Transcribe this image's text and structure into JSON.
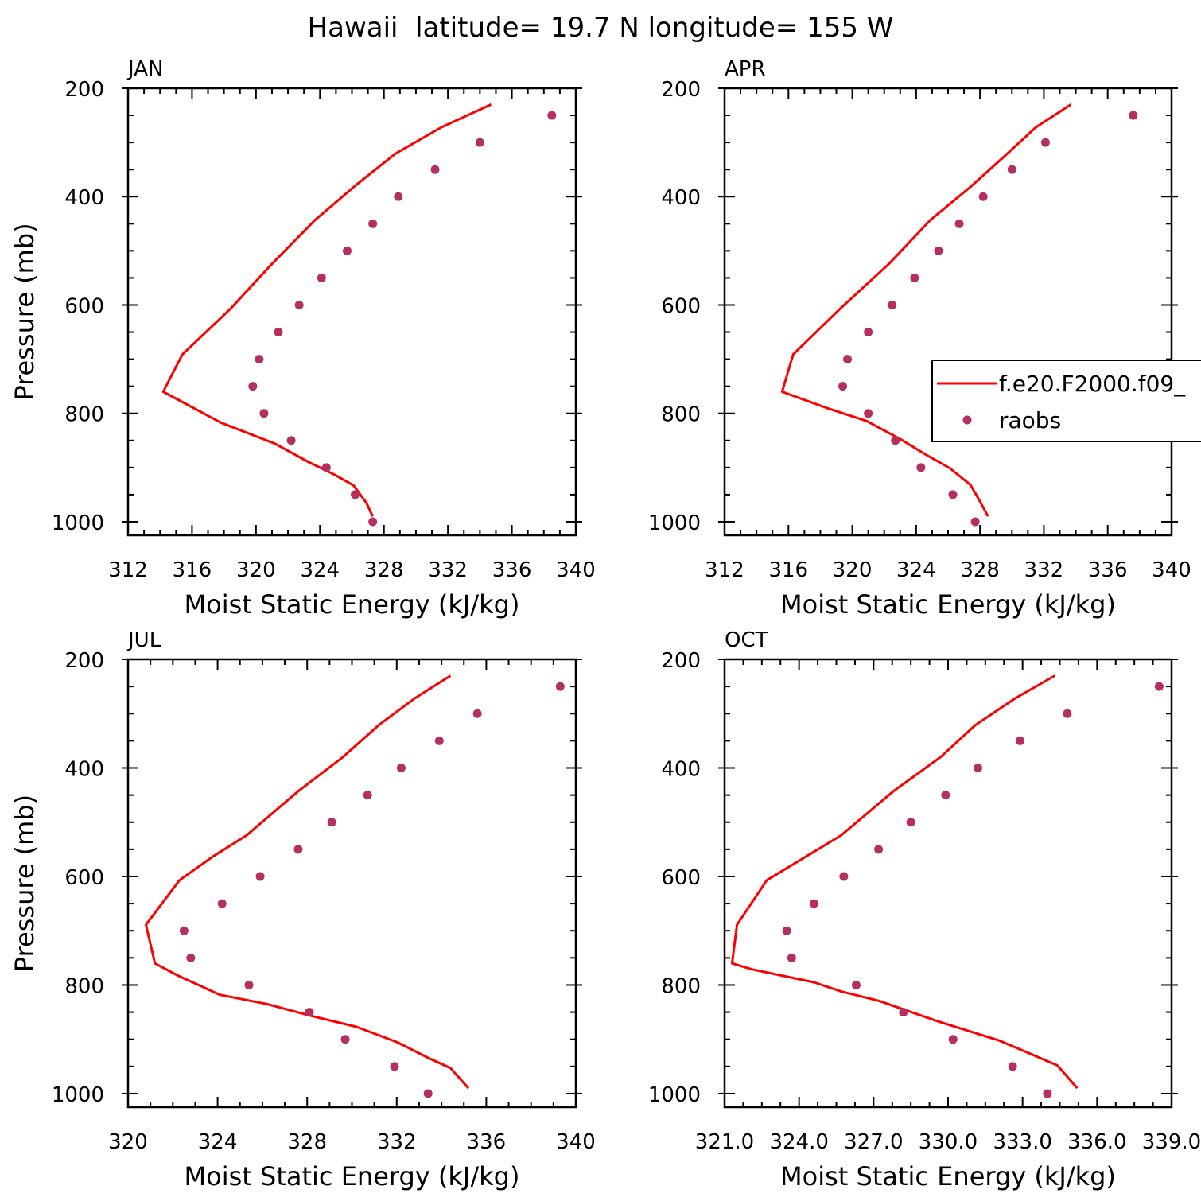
{
  "figure_title": "Hawaii  latitude= 19.7 N longitude= 155 W",
  "legend": {
    "line_label": "f.e20.F2000.f09_",
    "marker_label": "raobs"
  },
  "colors": {
    "model_line": "#ff0000",
    "obs_marker": "#b5305f",
    "axes": "#000000",
    "background": "#ffffff"
  },
  "chart_data": [
    {
      "type": "line",
      "panel_label": "JAN",
      "xlabel": "Moist Static Energy (kJ/kg)",
      "ylabel": "Pressure (mb)",
      "xlim": [
        312,
        340
      ],
      "ylim": [
        200,
        1025
      ],
      "y_inverted": true,
      "xticks": [
        312,
        316,
        320,
        324,
        328,
        332,
        336,
        340
      ],
      "xtick_labels": [
        "312",
        "316",
        "320",
        "324",
        "328",
        "332",
        "336",
        "340"
      ],
      "yticks": [
        200,
        400,
        600,
        800,
        1000
      ],
      "ytick_labels": [
        "200",
        "400",
        "600",
        "800",
        "1000"
      ],
      "show_ylabel": true,
      "show_legend": false,
      "series": [
        {
          "name": "f.e20.F2000.f09_",
          "kind": "line",
          "x": [
            334.7,
            331.6,
            328.7,
            326.2,
            323.7,
            321.0,
            318.4,
            315.4,
            314.2,
            317.8,
            321.2,
            323.3,
            324.9,
            326.1,
            326.9,
            327.3
          ],
          "y": [
            230,
            272,
            321,
            380,
            443,
            524,
            607,
            691,
            760,
            817,
            856,
            890,
            913,
            933,
            965,
            990
          ]
        },
        {
          "name": "raobs",
          "kind": "scatter",
          "x": [
            338.5,
            334.0,
            331.2,
            328.9,
            327.3,
            325.7,
            324.1,
            322.7,
            321.4,
            320.2,
            319.8,
            320.5,
            322.2,
            324.4,
            326.2,
            327.3
          ],
          "y": [
            250,
            300,
            350,
            400,
            450,
            500,
            550,
            600,
            650,
            700,
            750,
            800,
            850,
            900,
            950,
            1000
          ]
        }
      ]
    },
    {
      "type": "line",
      "panel_label": "APR",
      "xlabel": "Moist Static Energy (kJ/kg)",
      "ylabel": "",
      "xlim": [
        312,
        340
      ],
      "ylim": [
        200,
        1025
      ],
      "y_inverted": true,
      "xticks": [
        312,
        316,
        320,
        324,
        328,
        332,
        336,
        340
      ],
      "xtick_labels": [
        "312",
        "316",
        "320",
        "324",
        "328",
        "332",
        "336",
        "340"
      ],
      "yticks": [
        200,
        400,
        600,
        800,
        1000
      ],
      "ytick_labels": [
        "200",
        "400",
        "600",
        "800",
        "1000"
      ],
      "show_ylabel": false,
      "show_legend": true,
      "series": [
        {
          "name": "f.e20.F2000.f09_",
          "kind": "line",
          "x": [
            333.7,
            331.5,
            329.7,
            327.4,
            324.9,
            322.3,
            319.2,
            316.3,
            315.6,
            318.4,
            320.9,
            323.1,
            324.6,
            326.1,
            327.4,
            327.9,
            328.5
          ],
          "y": [
            230,
            272,
            321,
            382,
            443,
            524,
            608,
            691,
            760,
            790,
            814,
            849,
            876,
            901,
            932,
            957,
            990
          ]
        },
        {
          "name": "raobs",
          "kind": "scatter",
          "x": [
            337.6,
            332.1,
            330.0,
            328.2,
            326.7,
            325.4,
            323.9,
            322.5,
            321.0,
            319.7,
            319.4,
            321.0,
            322.7,
            324.3,
            326.3,
            327.7
          ],
          "y": [
            250,
            300,
            350,
            400,
            450,
            500,
            550,
            600,
            650,
            700,
            750,
            800,
            850,
            900,
            950,
            1000
          ]
        }
      ]
    },
    {
      "type": "line",
      "panel_label": "JUL",
      "xlabel": "Moist Static Energy (kJ/kg)",
      "ylabel": "Pressure (mb)",
      "xlim": [
        320,
        340
      ],
      "ylim": [
        200,
        1025
      ],
      "y_inverted": true,
      "xticks": [
        320,
        324,
        328,
        332,
        336,
        340
      ],
      "xtick_labels": [
        "320",
        "324",
        "328",
        "332",
        "336",
        "340"
      ],
      "yticks": [
        200,
        400,
        600,
        800,
        1000
      ],
      "ytick_labels": [
        "200",
        "400",
        "600",
        "800",
        "1000"
      ],
      "show_ylabel": true,
      "show_legend": false,
      "series": [
        {
          "name": "f.e20.F2000.f09_",
          "kind": "line",
          "x": [
            334.4,
            332.8,
            331.2,
            329.6,
            327.6,
            325.3,
            323.8,
            322.3,
            320.8,
            321.2,
            322.2,
            324.1,
            326.2,
            328.1,
            330.2,
            332.0,
            333.5,
            334.4,
            335.2
          ],
          "y": [
            230,
            272,
            321,
            380,
            443,
            524,
            563,
            607,
            689,
            760,
            782,
            818,
            835,
            856,
            877,
            905,
            936,
            953,
            990
          ]
        },
        {
          "name": "raobs",
          "kind": "scatter",
          "x": [
            339.3,
            335.6,
            333.9,
            332.2,
            330.7,
            329.1,
            327.6,
            325.9,
            324.2,
            322.5,
            322.8,
            325.4,
            328.1,
            329.7,
            331.9,
            333.4
          ],
          "y": [
            250,
            300,
            350,
            400,
            450,
            500,
            550,
            600,
            650,
            700,
            750,
            800,
            850,
            900,
            950,
            1000
          ]
        }
      ]
    },
    {
      "type": "line",
      "panel_label": "OCT",
      "xlabel": "Moist Static Energy (kJ/kg)",
      "ylabel": "",
      "xlim": [
        321,
        339
      ],
      "ylim": [
        200,
        1025
      ],
      "y_inverted": true,
      "xticks": [
        321,
        324,
        327,
        330,
        333,
        336,
        339
      ],
      "xtick_labels": [
        "321.0",
        "324.0",
        "327.0",
        "330.0",
        "333.0",
        "336.0",
        "339.0"
      ],
      "yticks": [
        200,
        400,
        600,
        800,
        1000
      ],
      "ytick_labels": [
        "200",
        "400",
        "600",
        "800",
        "1000"
      ],
      "show_ylabel": false,
      "show_legend": false,
      "series": [
        {
          "name": "f.e20.F2000.f09_",
          "kind": "line",
          "x": [
            334.3,
            332.7,
            331.1,
            329.7,
            327.8,
            325.7,
            322.7,
            321.5,
            321.3,
            322.1,
            324.6,
            325.7,
            327.2,
            329.6,
            332.1,
            334.4,
            335.2
          ],
          "y": [
            230,
            272,
            321,
            380,
            443,
            524,
            607,
            689,
            760,
            771,
            795,
            812,
            829,
            867,
            903,
            948,
            990
          ]
        },
        {
          "name": "raobs",
          "kind": "scatter",
          "x": [
            338.5,
            334.8,
            332.9,
            331.2,
            329.9,
            328.5,
            327.2,
            325.8,
            324.6,
            323.5,
            323.7,
            326.3,
            328.2,
            330.2,
            332.6,
            334.0
          ],
          "y": [
            250,
            300,
            350,
            400,
            450,
            500,
            550,
            600,
            650,
            700,
            750,
            800,
            850,
            900,
            950,
            1000
          ]
        }
      ]
    }
  ]
}
